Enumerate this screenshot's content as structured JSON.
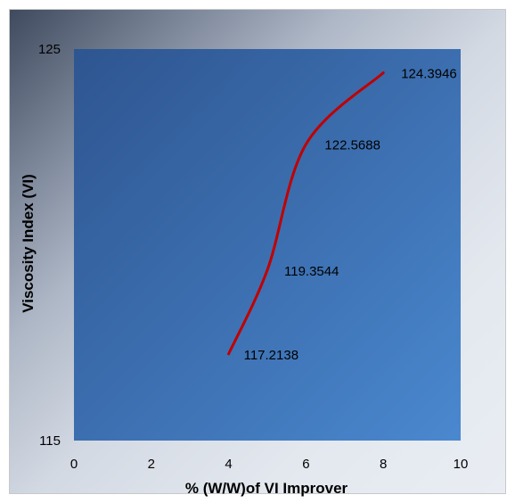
{
  "chart_data": {
    "type": "line",
    "xlabel": "% (W/W)of VI Improver",
    "ylabel": "Viscosity Index (VI)",
    "xlim": [
      0,
      10
    ],
    "ylim": [
      115,
      125
    ],
    "x_ticks": [
      "0",
      "2",
      "4",
      "6",
      "8",
      "10"
    ],
    "y_ticks": [
      "115",
      "125"
    ],
    "series": [
      {
        "x": [
          4,
          5,
          6,
          8
        ],
        "values": [
          117.2138,
          119.3544,
          122.5688,
          124.3946
        ],
        "labels": [
          "117.2138",
          "119.3544",
          "122.5688",
          "124.3946"
        ],
        "color": "#c00000"
      }
    ],
    "plot_fill": [
      "#2e5590",
      "#4a88cf"
    ]
  }
}
